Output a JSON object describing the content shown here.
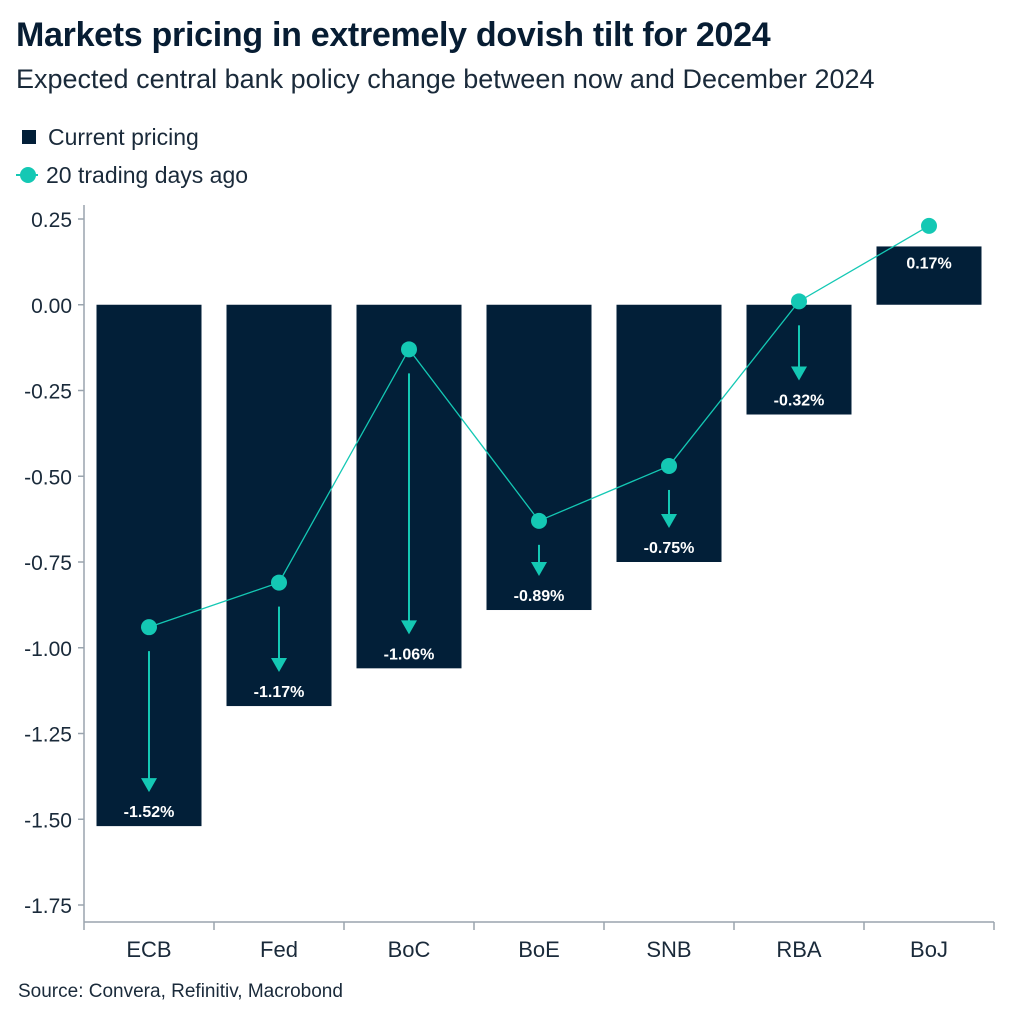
{
  "title": "Markets pricing in extremely dovish tilt for 2024",
  "subtitle": "Expected central bank policy change between now and December 2024",
  "legend": {
    "current": "Current pricing",
    "past": "20 trading days ago"
  },
  "source": "Source: Convera, Refinitiv, Macrobond",
  "colors": {
    "bar": "#021f38",
    "accent": "#14c8b4",
    "axis": "#9aa4ae",
    "text": "#1a2a3a"
  },
  "chart_data": {
    "type": "bar",
    "title": "Markets pricing in extremely dovish tilt for 2024",
    "subtitle": "Expected central bank policy change between now and December 2024",
    "categories": [
      "ECB",
      "Fed",
      "BoC",
      "BoE",
      "SNB",
      "RBA",
      "BoJ"
    ],
    "series": [
      {
        "name": "Current pricing",
        "kind": "bar",
        "values": [
          -1.52,
          -1.17,
          -1.06,
          -0.89,
          -0.75,
          -0.32,
          0.17
        ]
      },
      {
        "name": "20 trading days ago",
        "kind": "line-markers",
        "values": [
          -0.94,
          -0.81,
          -0.13,
          -0.63,
          -0.47,
          0.01,
          0.23
        ]
      }
    ],
    "data_labels": [
      "-1.52%",
      "-1.17%",
      "-1.06%",
      "-0.89%",
      "-0.75%",
      "-0.32%",
      "0.17%"
    ],
    "down_arrows": [
      "ECB",
      "Fed",
      "BoC",
      "BoE",
      "SNB",
      "RBA"
    ],
    "ylim": [
      -1.75,
      0.25
    ],
    "yticks": [
      0.25,
      0.0,
      -0.25,
      -0.5,
      -0.75,
      -1.0,
      -1.25,
      -1.5,
      -1.75
    ],
    "ytick_labels": [
      "0.25",
      "0.00",
      "-0.25",
      "-0.50",
      "-0.75",
      "-1.00",
      "-1.25",
      "-1.50",
      "-1.75"
    ],
    "xlabel": "",
    "ylabel": "",
    "grid": false,
    "legend_position": "top-left"
  }
}
